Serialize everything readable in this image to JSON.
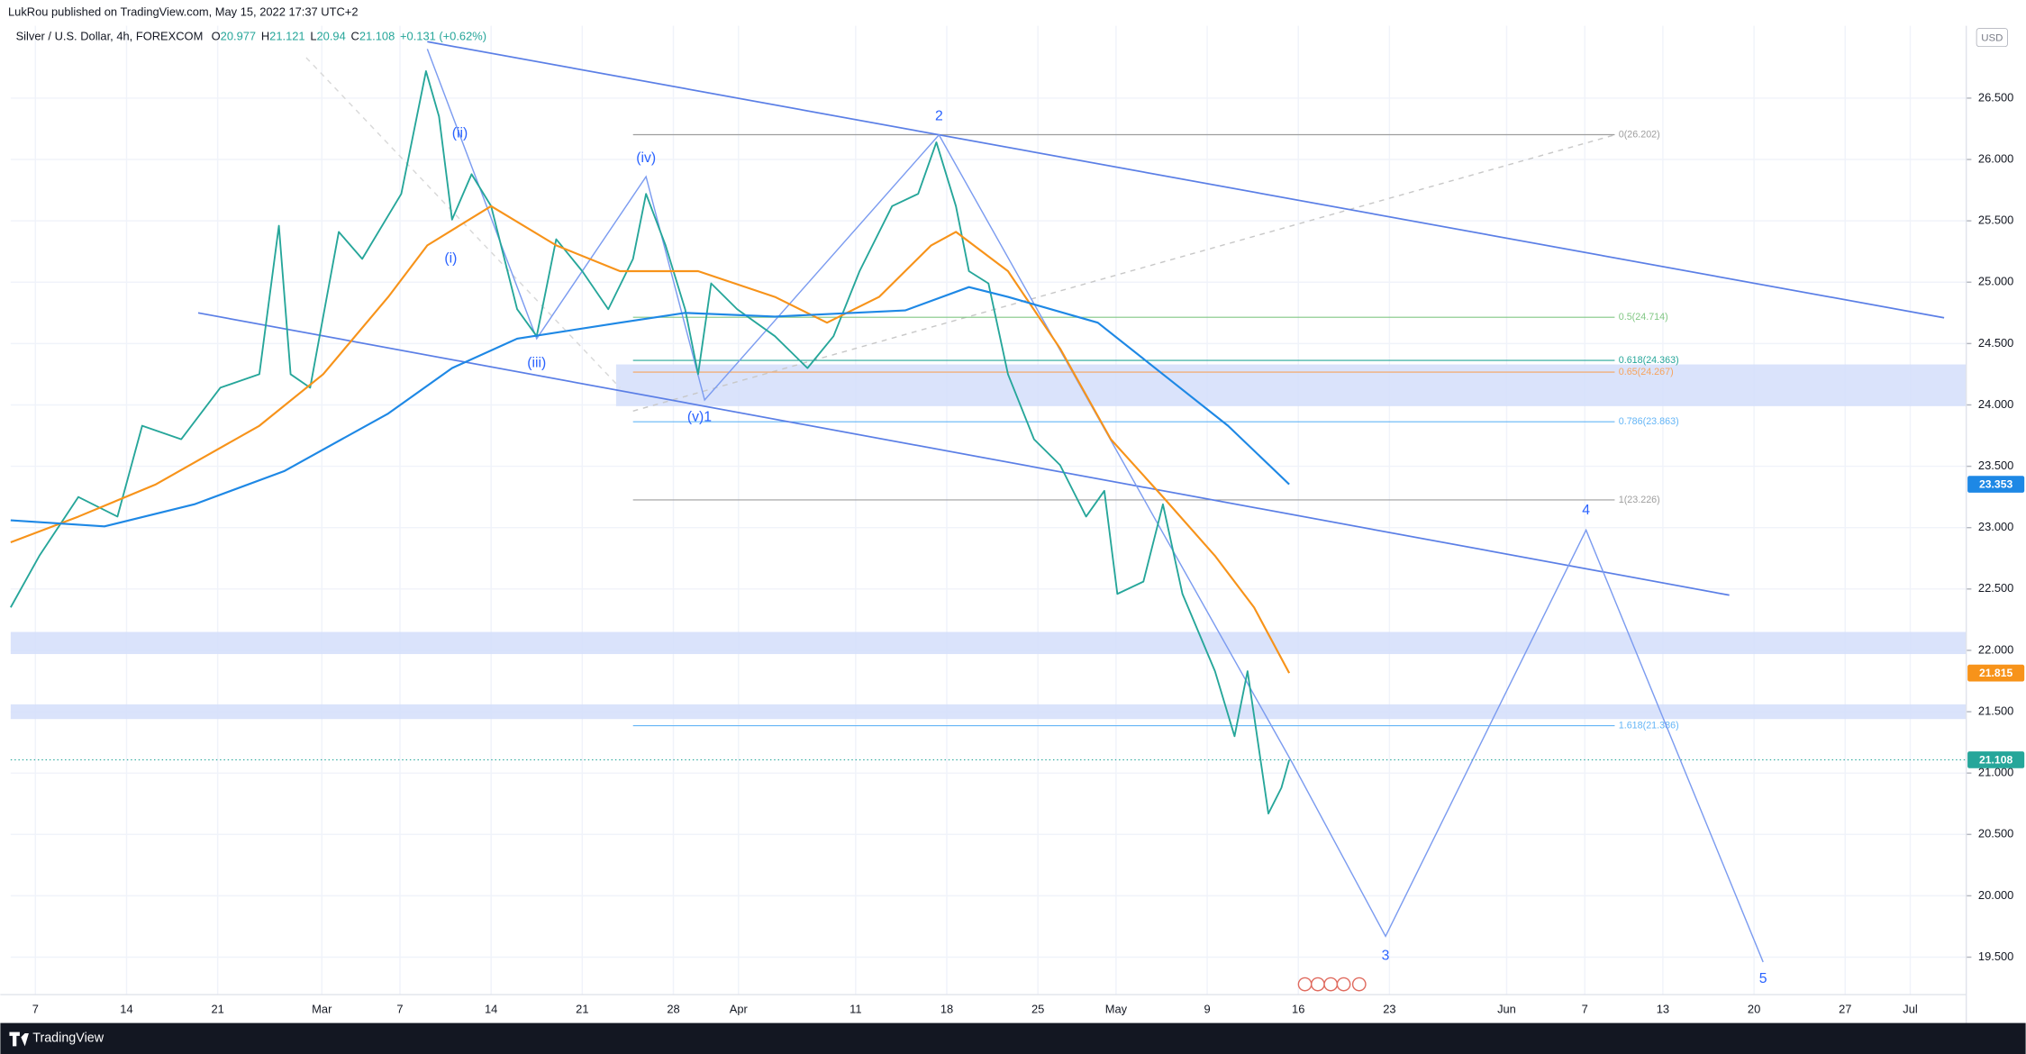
{
  "ui": {
    "publisher_note": "LukRou published on TradingView.com, May 15, 2022 17:37 UTC+2",
    "currency": "USD",
    "brand": "TradingView"
  },
  "chart_data": {
    "type": "line",
    "title": "Silver / U.S. Dollar, 4h, FOREXCOM",
    "ohlc": [
      {
        "key": "O",
        "value": 20.977
      },
      {
        "key": "H",
        "value": 21.121
      },
      {
        "key": "L",
        "value": 20.94
      },
      {
        "key": "C",
        "value": 21.108
      }
    ],
    "change": "+0.131 (+0.62%)",
    "xlim": [
      -1.9,
      148.3
    ],
    "ylim": [
      19.195,
      27.089
    ],
    "grid": true,
    "xticks": [
      {
        "value": 0,
        "label": "7"
      },
      {
        "value": 7,
        "label": "14"
      },
      {
        "value": 14,
        "label": "21"
      },
      {
        "value": 22,
        "label": "Mar"
      },
      {
        "value": 28,
        "label": "7"
      },
      {
        "value": 35,
        "label": "14"
      },
      {
        "value": 42,
        "label": "21"
      },
      {
        "value": 49,
        "label": "28"
      },
      {
        "value": 54,
        "label": "Apr"
      },
      {
        "value": 63,
        "label": "11"
      },
      {
        "value": 70,
        "label": "18"
      },
      {
        "value": 77,
        "label": "25"
      },
      {
        "value": 83,
        "label": "May"
      },
      {
        "value": 90,
        "label": "9"
      },
      {
        "value": 97,
        "label": "16"
      },
      {
        "value": 104,
        "label": "23"
      },
      {
        "value": 113,
        "label": "Jun"
      },
      {
        "value": 119,
        "label": "7"
      },
      {
        "value": 125,
        "label": "13"
      },
      {
        "value": 132,
        "label": "20"
      },
      {
        "value": 139,
        "label": "27"
      },
      {
        "value": 144,
        "label": "Jul"
      }
    ],
    "yticks": [
      {
        "value": 19.5,
        "label": "19.500"
      },
      {
        "value": 20,
        "label": "20.000"
      },
      {
        "value": 20.5,
        "label": "20.500"
      },
      {
        "value": 21,
        "label": "21.000"
      },
      {
        "value": 21.5,
        "label": "21.500"
      },
      {
        "value": 22,
        "label": "22.000"
      },
      {
        "value": 22.5,
        "label": "22.500"
      },
      {
        "value": 23,
        "label": "23.000"
      },
      {
        "value": 23.5,
        "label": "23.500"
      },
      {
        "value": 24,
        "label": "24.000"
      },
      {
        "value": 24.5,
        "label": "24.500"
      },
      {
        "value": 25,
        "label": "25.000"
      },
      {
        "value": 25.5,
        "label": "25.500"
      },
      {
        "value": 26,
        "label": "26.000"
      },
      {
        "value": 26.5,
        "label": "26.500"
      }
    ],
    "series": [
      {
        "color": "#26a69a",
        "x": [
          -1.9,
          0.3,
          3.3,
          6.3,
          8.2,
          11.2,
          14.2,
          17.2,
          18.7,
          19.6,
          21.1,
          23.3,
          25.1,
          28.1,
          30,
          31,
          32,
          33.5,
          35,
          37,
          38.5,
          40,
          42,
          44,
          45.9,
          46.9,
          48.4,
          49.9,
          50.9,
          51.9,
          53.9,
          56.8,
          59.3,
          61.3,
          63.3,
          65.8,
          67.8,
          69.2,
          70.7,
          71.7,
          73.2,
          74.7,
          76.7,
          78.7,
          80.7,
          82.1,
          83.1,
          85.1,
          86.6,
          88.1,
          90.6,
          92.1,
          93.1,
          94.7,
          95.7,
          96.3
        ],
        "values": [
          22.35,
          22.77,
          23.25,
          23.09,
          23.83,
          23.72,
          24.14,
          24.25,
          25.46,
          24.25,
          24.14,
          25.41,
          25.19,
          25.72,
          26.72,
          26.35,
          25.51,
          25.88,
          25.62,
          24.78,
          24.56,
          25.35,
          25.09,
          24.78,
          25.19,
          25.72,
          25.3,
          24.78,
          24.25,
          24.99,
          24.78,
          24.56,
          24.3,
          24.56,
          25.09,
          25.62,
          25.72,
          26.14,
          25.62,
          25.09,
          24.99,
          24.25,
          23.72,
          23.51,
          23.09,
          23.3,
          22.46,
          22.56,
          23.19,
          22.46,
          21.83,
          21.3,
          21.83,
          20.67,
          20.88,
          21.108
        ]
      },
      {
        "color": "#f7931a",
        "x": [
          -1.9,
          3.3,
          9.2,
          17.2,
          22.1,
          27.1,
          30.1,
          35,
          40,
          44.9,
          50.9,
          56.8,
          60.8,
          64.8,
          68.8,
          70.7,
          74.7,
          78.7,
          82.6,
          86.6,
          90.6,
          93.6,
          96.3
        ],
        "values": [
          22.88,
          23.09,
          23.35,
          23.83,
          24.25,
          24.88,
          25.3,
          25.62,
          25.3,
          25.09,
          25.09,
          24.88,
          24.67,
          24.88,
          25.3,
          25.41,
          25.09,
          24.46,
          23.72,
          23.25,
          22.77,
          22.35,
          21.815
        ]
      },
      {
        "color": "#1e88e5",
        "x": [
          -1.9,
          5.3,
          12.2,
          19.1,
          27.1,
          32,
          37,
          44.9,
          49.9,
          56.8,
          66.8,
          71.7,
          74.7,
          81.6,
          86.6,
          91.6,
          96.3
        ],
        "values": [
          23.06,
          23.01,
          23.19,
          23.46,
          23.93,
          24.3,
          24.54,
          24.67,
          24.75,
          24.72,
          24.77,
          24.96,
          24.88,
          24.67,
          24.25,
          23.83,
          23.353
        ]
      }
    ],
    "price_labels": [
      {
        "value": 23.353,
        "label": "23.353",
        "color": "#1e88e5"
      },
      {
        "value": 21.815,
        "label": "21.815",
        "color": "#f7931a"
      },
      {
        "value": 21.108,
        "label": "21.108",
        "color": "#26a69a"
      }
    ],
    "zones": [
      {
        "from": 23.99,
        "to": 24.33,
        "x": [
          44.6,
          148.3
        ]
      },
      {
        "from": 21.97,
        "to": 22.15,
        "x": [
          -1.9,
          148.3
        ]
      },
      {
        "from": 21.44,
        "to": 21.56,
        "x": [
          -1.9,
          148.3
        ]
      }
    ],
    "fib_x": [
      45.9,
      121.3
    ],
    "fib_levels": [
      {
        "value": 26.202,
        "label": "0(26.202)",
        "color": "#9e9e9e"
      },
      {
        "value": 24.714,
        "label": "0.5(24.714)",
        "color": "#81c784"
      },
      {
        "value": 24.363,
        "label": "0.618(24.363)",
        "color": "#26a69a"
      },
      {
        "value": 24.267,
        "label": "0.65(24.267)",
        "color": "#f7a35c"
      },
      {
        "value": 23.863,
        "label": "0.786(23.863)",
        "color": "#64b5f6"
      },
      {
        "value": 23.226,
        "label": "1(23.226)",
        "color": "#9e9e9e"
      },
      {
        "value": 21.386,
        "label": "1.618(21.386)",
        "color": "#64b5f6"
      }
    ],
    "trendlines": [
      {
        "x": [
          30.1,
          146.6
        ],
        "values": [
          26.96,
          24.71
        ],
        "color": "#5b7fe6"
      },
      {
        "x": [
          12.5,
          130.1
        ],
        "values": [
          24.75,
          22.45
        ],
        "color": "#5b7fe6"
      }
    ],
    "dashed_lines": [
      {
        "x": [
          45.9,
          121.3
        ],
        "values": [
          23.95,
          26.2
        ],
        "color": "#c8c8c8"
      },
      {
        "x": [
          20.8,
          44.9
        ],
        "values": [
          26.83,
          24.14
        ],
        "color": "#d8d8d8"
      }
    ],
    "wave": {
      "color": "#7c9cf0",
      "x": [
        30.1,
        38.5,
        46.9,
        51.4,
        69.4,
        96.5,
        103.7,
        119.1,
        132.7
      ],
      "values": [
        26.9,
        24.54,
        25.86,
        24.04,
        26.2,
        21.09,
        19.67,
        22.98,
        19.46
      ]
    },
    "annotations": [
      {
        "text": "(i)",
        "x": 31.9,
        "y": 25.19
      },
      {
        "text": "(ii)",
        "x": 32.6,
        "y": 26.21
      },
      {
        "text": "(iii)",
        "x": 38.5,
        "y": 24.34
      },
      {
        "text": "(iv)",
        "x": 46.9,
        "y": 26.01
      },
      {
        "text": "(v)1",
        "x": 51.0,
        "y": 23.9
      },
      {
        "text": "2",
        "x": 69.4,
        "y": 26.35
      },
      {
        "text": "3",
        "x": 103.7,
        "y": 19.51
      },
      {
        "text": "4",
        "x": 119.1,
        "y": 23.14
      },
      {
        "text": "5",
        "x": 132.7,
        "y": 19.32
      }
    ],
    "annotation_color": "#2962ff"
  }
}
